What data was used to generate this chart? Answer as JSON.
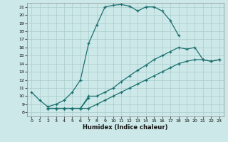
{
  "xlabel": "Humidex (Indice chaleur)",
  "background_color": "#cde8e8",
  "grid_color": "#aacccc",
  "line_color": "#1a7070",
  "xlim": [
    -0.5,
    23.5
  ],
  "ylim": [
    7.5,
    21.5
  ],
  "xticks": [
    0,
    1,
    2,
    3,
    4,
    5,
    6,
    7,
    8,
    9,
    10,
    11,
    12,
    13,
    14,
    15,
    16,
    17,
    18,
    19,
    20,
    21,
    22,
    23
  ],
  "yticks": [
    8,
    9,
    10,
    11,
    12,
    13,
    14,
    15,
    16,
    17,
    18,
    19,
    20,
    21
  ],
  "line1_x": [
    0,
    1,
    2,
    3,
    4,
    5,
    6,
    7,
    8,
    9,
    10,
    11,
    12,
    13,
    14,
    15,
    16,
    17,
    18
  ],
  "line1_y": [
    10.5,
    9.5,
    8.7,
    9.0,
    9.5,
    10.5,
    12.0,
    16.5,
    18.8,
    21.0,
    21.2,
    21.3,
    21.1,
    20.5,
    21.0,
    21.0,
    20.5,
    19.3,
    17.5
  ],
  "line2_x": [
    2,
    3,
    4,
    5,
    6,
    7,
    8,
    9,
    10,
    11,
    12,
    13,
    14,
    15,
    16,
    17,
    18,
    19,
    20,
    21,
    22,
    23
  ],
  "line2_y": [
    8.5,
    8.5,
    8.5,
    8.5,
    8.5,
    10.0,
    10.0,
    10.5,
    11.0,
    11.8,
    12.5,
    13.2,
    13.8,
    14.5,
    15.0,
    15.5,
    16.0,
    15.8,
    16.0,
    14.5,
    14.3,
    14.5
  ],
  "line3_x": [
    2,
    3,
    4,
    5,
    6,
    7,
    8,
    9,
    10,
    11,
    12,
    13,
    14,
    15,
    16,
    17,
    18,
    19,
    20,
    21,
    22,
    23
  ],
  "line3_y": [
    8.5,
    8.5,
    8.5,
    8.5,
    8.5,
    8.5,
    9.0,
    9.5,
    10.0,
    10.5,
    11.0,
    11.5,
    12.0,
    12.5,
    13.0,
    13.5,
    14.0,
    14.3,
    14.5,
    14.5,
    14.3,
    14.5
  ],
  "line4_x": [
    2,
    3,
    4,
    5,
    6,
    7
  ],
  "line4_y": [
    8.5,
    8.5,
    8.5,
    8.5,
    8.5,
    9.8
  ]
}
